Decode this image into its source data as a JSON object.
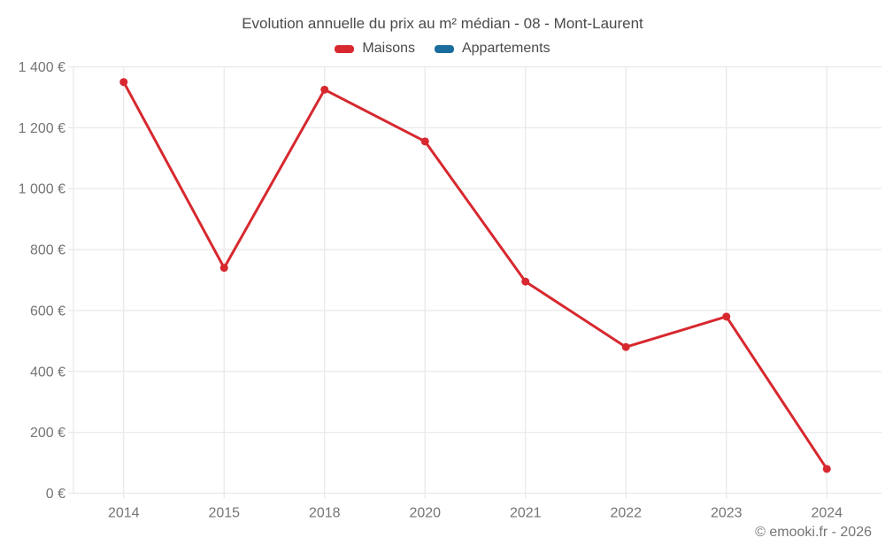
{
  "chart_data": {
    "type": "line",
    "title": "Evolution annuelle du prix au m² médian - 08 - Mont-Laurent",
    "categories": [
      "2014",
      "2015",
      "2018",
      "2020",
      "2021",
      "2022",
      "2023",
      "2024"
    ],
    "series": [
      {
        "name": "Maisons",
        "color": "#d7282f",
        "values": [
          1350,
          740,
          1325,
          1155,
          695,
          480,
          580,
          80
        ]
      },
      {
        "name": "Appartements",
        "color": "#1a6d9c",
        "values": []
      }
    ],
    "xlabel": "",
    "ylabel": "",
    "ylim": [
      0,
      1400
    ],
    "y_tick_step": 200,
    "y_tick_labels": [
      "0 €",
      "200 €",
      "400 €",
      "600 €",
      "800 €",
      "1 000 €",
      "1 200 €",
      "1 400 €"
    ],
    "grid": true,
    "legend_position": "top",
    "unit": "€"
  },
  "footer": {
    "copyright": "© emooki.fr - 2026"
  },
  "style": {
    "grid_color": "#e9e9e9",
    "axis_text_color": "#757575",
    "title_color": "#4a4a4a",
    "background": "#ffffff",
    "marker_radius": 4.5,
    "line_width": 3
  }
}
